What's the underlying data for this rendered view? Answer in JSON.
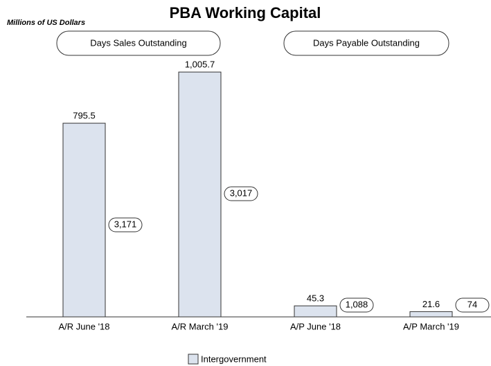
{
  "chart_data": {
    "type": "bar",
    "title": "PBA Working Capital",
    "subtitle": "Millions of US Dollars",
    "group_headers": [
      "Days Sales Outstanding",
      "Days Payable Outstanding"
    ],
    "categories": [
      "A/R June '18",
      "A/R March '19",
      "A/P June '18",
      "A/P March '19"
    ],
    "series": [
      {
        "name": "Intergovernment",
        "color": "#dce3ee",
        "values": [
          795.5,
          1005.7,
          45.3,
          21.6
        ],
        "value_labels": [
          "795.5",
          "1,005.7",
          "45.3",
          "21.6"
        ]
      }
    ],
    "days": [
      3171,
      3017,
      1088,
      74
    ],
    "days_labels": [
      "3,171",
      "3,017",
      "1,088",
      "74"
    ],
    "ylim": [
      0,
      1010
    ]
  }
}
